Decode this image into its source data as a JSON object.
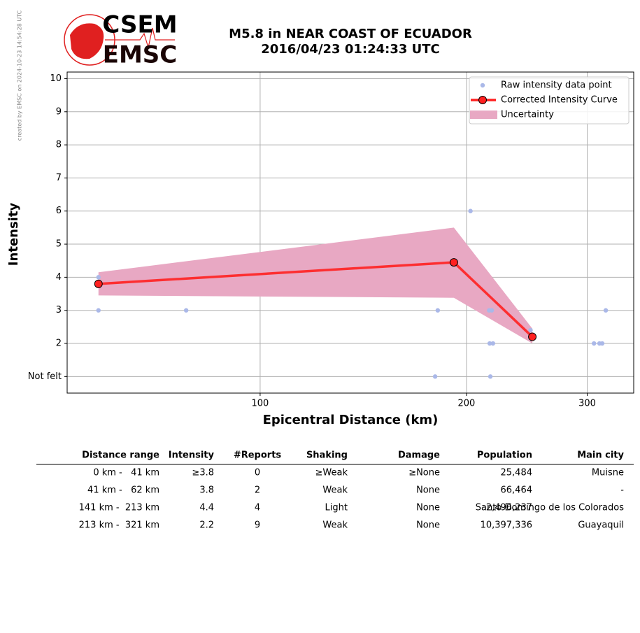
{
  "header": {
    "logo_top": "CSEM",
    "logo_bottom": "EMSC",
    "credit": "created by EMSC on 2024-10-23 14:54:28 UTC"
  },
  "chart_data": {
    "type": "line",
    "title": "M5.8 in NEAR COAST OF ECUADOR",
    "subtitle": "2016/04/23 01:24:33 UTC",
    "x_label": "Epicentral Distance (km)",
    "y_label": "Intensity",
    "xscale": "log",
    "xlim": [
      52.3,
      350.7
    ],
    "ylim": [
      0.5,
      10.2
    ],
    "xticks": [
      100,
      200,
      300
    ],
    "yticks": [
      {
        "value": 1,
        "label": "Not felt"
      },
      2,
      3,
      4,
      5,
      6,
      7,
      8,
      9,
      10
    ],
    "grid": true,
    "legend": "upper right",
    "series": [
      {
        "name": "Raw intensity data point",
        "style": "points",
        "color": "#aab8e8",
        "x": [
          58.1,
          58.1,
          78,
          180,
          181.6,
          202.7,
          215.8,
          217.7,
          216.2,
          218.6,
          216.7,
          248,
          306.9,
          312.6,
          315.5,
          319.3
        ],
        "values": [
          4,
          3,
          3,
          1,
          3,
          6,
          3,
          3,
          2,
          2,
          1,
          2.4,
          2,
          2,
          2,
          3
        ]
      },
      {
        "name": "Corrected Intensity Curve",
        "style": "line",
        "color": "#ff2020",
        "x": [
          58.1,
          191.7,
          249.5
        ],
        "values": [
          3.8,
          4.45,
          2.2
        ]
      },
      {
        "name": "Uncertainty",
        "style": "band",
        "color": "#e8a8c3",
        "x": [
          58.1,
          191.7,
          249.5
        ],
        "lower": [
          3.45,
          3.38,
          2.0
        ],
        "upper": [
          4.15,
          5.5,
          2.45
        ]
      }
    ]
  },
  "table": {
    "columns": [
      "Distance range",
      "Intensity",
      "#Reports",
      "Shaking",
      "Damage",
      "Population",
      "Main city"
    ],
    "rows": [
      [
        "0 km -   41 km",
        "≥3.8",
        "0",
        "≥Weak",
        "≥None",
        "25,484",
        "Muisne"
      ],
      [
        "41 km -   62 km",
        "3.8",
        "2",
        "Weak",
        "None",
        "66,464",
        "-"
      ],
      [
        "141 km -  213 km",
        "4.4",
        "4",
        "Light",
        "None",
        "2,496,237",
        "Santo Domingo de los Colorados"
      ],
      [
        "213 km -  321 km",
        "2.2",
        "9",
        "Weak",
        "None",
        "10,397,336",
        "Guayaquil"
      ]
    ]
  }
}
